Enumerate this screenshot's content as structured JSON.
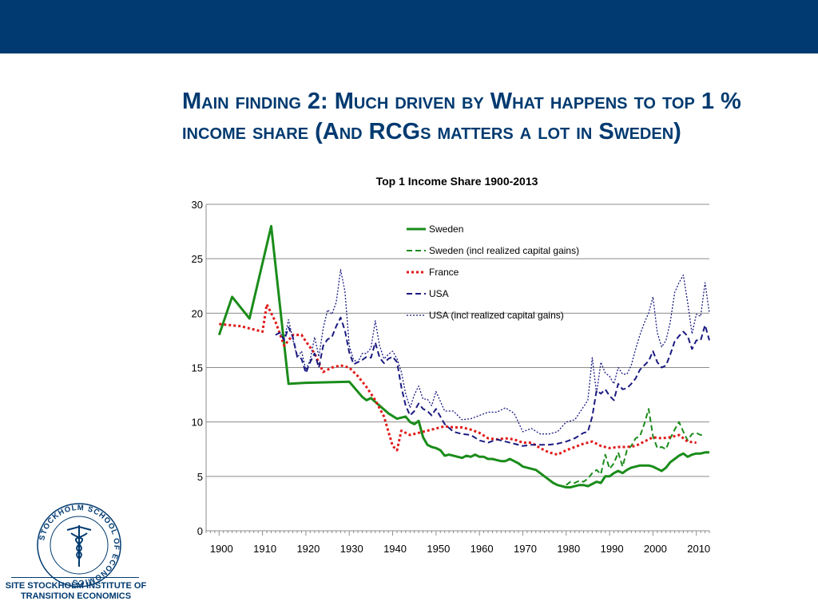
{
  "header": {
    "bar_color": "#003a70"
  },
  "slide": {
    "title": "Main finding 2: Much driven by What happens to top 1 % income share (And RCGs matters a lot in Sweden)"
  },
  "logo": {
    "ring_text": "STOCKHOLM SCHOOL OF ECONOMICS",
    "caption_line1": "SITE STOCKHOLM INSTITUTE OF",
    "caption_line2": "TRANSITION ECONOMICS"
  },
  "chart_data": {
    "type": "line",
    "title": "Top 1 Income Share 1900-2013",
    "xlabel": "",
    "ylabel": "",
    "xlim": [
      1897,
      2013
    ],
    "ylim": [
      0,
      30
    ],
    "x_ticks": [
      1900,
      1910,
      1920,
      1930,
      1940,
      1950,
      1960,
      1970,
      1980,
      1990,
      2000,
      2010
    ],
    "x_tick_labels": [
      "1900",
      "1910",
      "1920",
      "1930",
      "1940",
      "1950",
      "1960",
      "1970",
      "1980",
      "1990",
      "2000",
      "2010"
    ],
    "y_ticks": [
      0,
      5,
      10,
      15,
      20,
      25,
      30
    ],
    "y_tick_labels": [
      "0",
      "5",
      "10",
      "15",
      "20",
      "25",
      "30"
    ],
    "grid": true,
    "legend_position": "top-right (inside)",
    "series": [
      {
        "name": "Sweden",
        "color": "#1a8c1a",
        "style": "solid",
        "x": [
          1900,
          1903,
          1907,
          1912,
          1916,
          1920,
          1930,
          1933,
          1934,
          1935,
          1937,
          1939,
          1941,
          1943,
          1944,
          1945,
          1946,
          1947,
          1948,
          1949,
          1950,
          1951,
          1952,
          1953,
          1954,
          1955,
          1956,
          1957,
          1958,
          1959,
          1960,
          1961,
          1962,
          1963,
          1964,
          1965,
          1966,
          1967,
          1968,
          1969,
          1970,
          1971,
          1972,
          1973,
          1974,
          1975,
          1976,
          1977,
          1978,
          1979,
          1980,
          1981,
          1982,
          1983,
          1984,
          1985,
          1986,
          1987,
          1988,
          1989,
          1990,
          1991,
          1992,
          1993,
          1994,
          1995,
          1996,
          1997,
          1998,
          1999,
          2000,
          2001,
          2002,
          2003,
          2004,
          2005,
          2006,
          2007,
          2008,
          2009,
          2010,
          2011,
          2012,
          2013
        ],
        "values": [
          18.0,
          21.5,
          19.5,
          28.0,
          13.5,
          13.6,
          13.7,
          12.3,
          12.0,
          12.2,
          11.5,
          10.8,
          10.3,
          10.5,
          10.0,
          9.8,
          10.1,
          8.6,
          7.9,
          7.7,
          7.6,
          7.4,
          6.9,
          7.0,
          6.9,
          6.8,
          6.7,
          6.9,
          6.8,
          7.0,
          6.8,
          6.8,
          6.6,
          6.6,
          6.5,
          6.4,
          6.4,
          6.6,
          6.4,
          6.2,
          5.9,
          5.8,
          5.7,
          5.6,
          5.3,
          5.0,
          4.7,
          4.4,
          4.2,
          4.1,
          4.0,
          4.0,
          4.1,
          4.2,
          4.2,
          4.1,
          4.3,
          4.5,
          4.4,
          5.0,
          5.0,
          5.3,
          5.5,
          5.3,
          5.6,
          5.8,
          5.9,
          6.0,
          6.0,
          6.0,
          5.9,
          5.7,
          5.5,
          5.8,
          6.3,
          6.6,
          6.9,
          7.1,
          6.8,
          7.0,
          7.1,
          7.1,
          7.2,
          7.2
        ]
      },
      {
        "name": "Sweden (incl realized capital gains)",
        "color": "#1a8c1a",
        "style": "dashed",
        "x": [
          1980,
          1981,
          1982,
          1983,
          1984,
          1985,
          1986,
          1987,
          1988,
          1989,
          1990,
          1991,
          1992,
          1993,
          1994,
          1995,
          1996,
          1997,
          1998,
          1999,
          2000,
          2001,
          2002,
          2003,
          2004,
          2005,
          2006,
          2007,
          2008,
          2009,
          2010,
          2011,
          2012
        ],
        "values": [
          4.2,
          4.5,
          4.4,
          4.6,
          4.5,
          4.8,
          5.3,
          5.6,
          5.2,
          7.0,
          5.7,
          6.2,
          7.2,
          5.9,
          7.4,
          7.8,
          8.5,
          8.7,
          9.8,
          11.2,
          8.7,
          7.6,
          7.7,
          7.5,
          8.5,
          9.3,
          10.0,
          9.1,
          8.3,
          8.9,
          9.0,
          8.8,
          8.8
        ]
      },
      {
        "name": "France",
        "color": "#e01a1a",
        "style": "dotted",
        "x": [
          1900,
          1905,
          1910,
          1911,
          1913,
          1915,
          1917,
          1919,
          1920,
          1922,
          1924,
          1926,
          1928,
          1930,
          1932,
          1934,
          1936,
          1938,
          1940,
          1941,
          1942,
          1944,
          1946,
          1948,
          1950,
          1952,
          1954,
          1956,
          1958,
          1960,
          1962,
          1964,
          1966,
          1968,
          1970,
          1972,
          1974,
          1976,
          1978,
          1980,
          1982,
          1984,
          1986,
          1988,
          1990,
          1992,
          1994,
          1996,
          1998,
          2000,
          2002,
          2004,
          2006,
          2008,
          2010
        ],
        "values": [
          19.0,
          18.8,
          18.3,
          20.8,
          19.2,
          17.0,
          18.0,
          18.0,
          17.4,
          16.3,
          14.6,
          15.0,
          15.2,
          15.0,
          14.2,
          13.2,
          12.0,
          10.5,
          7.8,
          7.4,
          9.2,
          8.8,
          9.0,
          9.2,
          9.4,
          9.6,
          9.5,
          9.5,
          9.3,
          9.0,
          8.5,
          8.4,
          8.5,
          8.4,
          8.1,
          8.1,
          7.6,
          7.2,
          7.0,
          7.4,
          7.7,
          8.0,
          8.2,
          7.8,
          7.6,
          7.7,
          7.7,
          7.8,
          8.2,
          8.6,
          8.5,
          8.6,
          8.8,
          8.2,
          8.1
        ]
      },
      {
        "name": "USA",
        "color": "#1a1a80",
        "style": "dashed",
        "x": [
          1913,
          1914,
          1915,
          1916,
          1917,
          1918,
          1919,
          1920,
          1921,
          1922,
          1923,
          1924,
          1925,
          1926,
          1927,
          1928,
          1929,
          1930,
          1931,
          1932,
          1933,
          1934,
          1935,
          1936,
          1937,
          1938,
          1939,
          1940,
          1941,
          1942,
          1943,
          1944,
          1945,
          1946,
          1947,
          1948,
          1949,
          1950,
          1952,
          1954,
          1956,
          1958,
          1960,
          1962,
          1964,
          1966,
          1968,
          1970,
          1972,
          1974,
          1976,
          1978,
          1980,
          1982,
          1984,
          1985,
          1986,
          1987,
          1988,
          1989,
          1990,
          1991,
          1992,
          1993,
          1994,
          1995,
          1996,
          1997,
          1998,
          1999,
          2000,
          2001,
          2002,
          2003,
          2004,
          2005,
          2006,
          2007,
          2008,
          2009,
          2010,
          2011,
          2012,
          2013
        ],
        "values": [
          18.0,
          18.2,
          17.5,
          18.7,
          17.8,
          16.0,
          15.8,
          14.5,
          15.5,
          16.3,
          15.0,
          17.0,
          17.6,
          17.8,
          18.8,
          19.6,
          18.4,
          16.4,
          15.3,
          15.5,
          15.7,
          16.0,
          15.9,
          17.3,
          15.9,
          15.4,
          15.8,
          16.0,
          15.5,
          13.2,
          11.5,
          10.6,
          11.0,
          11.7,
          11.2,
          11.0,
          10.6,
          11.2,
          9.8,
          9.1,
          8.9,
          8.8,
          8.3,
          8.1,
          8.4,
          8.2,
          8.0,
          7.8,
          7.9,
          7.9,
          7.9,
          8.0,
          8.2,
          8.5,
          9.0,
          9.1,
          10.5,
          12.9,
          12.6,
          13.0,
          12.4,
          12.0,
          13.5,
          13.0,
          13.1,
          13.5,
          14.0,
          14.8,
          15.2,
          15.6,
          16.5,
          15.5,
          15.0,
          15.2,
          16.2,
          17.4,
          17.9,
          18.3,
          17.9,
          16.7,
          17.5,
          17.5,
          18.9,
          17.5
        ]
      },
      {
        "name": "USA (incl realized capital gains)",
        "color": "#1a1a80",
        "style": "dotted-thin",
        "x": [
          1913,
          1914,
          1915,
          1916,
          1917,
          1918,
          1919,
          1920,
          1921,
          1922,
          1923,
          1924,
          1925,
          1926,
          1927,
          1928,
          1929,
          1930,
          1931,
          1932,
          1933,
          1934,
          1935,
          1936,
          1937,
          1938,
          1939,
          1940,
          1941,
          1942,
          1943,
          1944,
          1945,
          1946,
          1947,
          1948,
          1949,
          1950,
          1952,
          1954,
          1956,
          1958,
          1960,
          1962,
          1964,
          1966,
          1968,
          1970,
          1972,
          1974,
          1976,
          1978,
          1980,
          1982,
          1984,
          1985,
          1986,
          1987,
          1988,
          1989,
          1990,
          1991,
          1992,
          1993,
          1994,
          1995,
          1996,
          1997,
          1998,
          1999,
          2000,
          2001,
          2002,
          2003,
          2004,
          2005,
          2006,
          2007,
          2008,
          2009,
          2010,
          2011,
          2012,
          2013
        ],
        "values": [
          18.0,
          18.2,
          17.6,
          19.4,
          17.6,
          15.9,
          16.5,
          14.8,
          15.7,
          17.8,
          16.0,
          18.6,
          20.3,
          19.9,
          21.0,
          24.0,
          22.0,
          17.0,
          15.7,
          15.5,
          16.3,
          16.3,
          16.8,
          19.3,
          17.0,
          15.8,
          16.2,
          16.5,
          15.8,
          14.6,
          12.6,
          11.3,
          12.5,
          13.3,
          12.1,
          12.1,
          11.5,
          12.8,
          11.0,
          11.0,
          10.2,
          10.3,
          10.6,
          10.9,
          10.9,
          11.3,
          10.8,
          9.1,
          9.4,
          8.9,
          8.9,
          9.1,
          10.0,
          10.2,
          11.4,
          12.0,
          15.9,
          12.6,
          15.5,
          14.5,
          14.2,
          13.5,
          15.0,
          14.4,
          14.4,
          15.2,
          16.7,
          18.0,
          19.1,
          20.0,
          21.5,
          18.2,
          16.9,
          17.5,
          19.2,
          21.9,
          22.8,
          23.5,
          21.0,
          18.1,
          19.9,
          19.7,
          22.8,
          20.0
        ]
      }
    ]
  }
}
